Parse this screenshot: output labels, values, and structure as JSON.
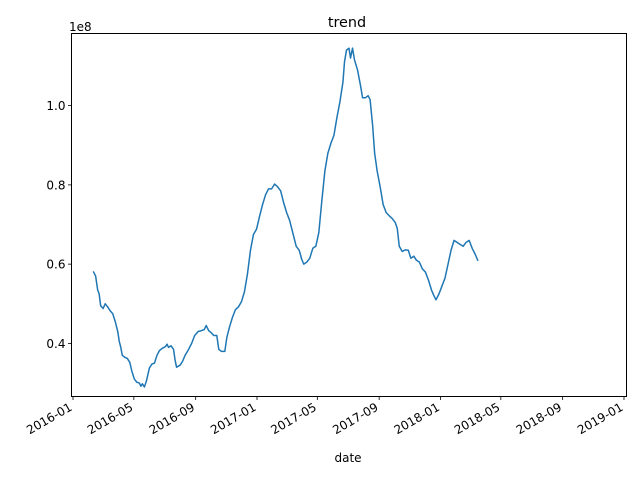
{
  "chart_data": {
    "type": "line",
    "title": "trend",
    "xlabel": "date",
    "ylabel": "",
    "y_scale_label": "1e8",
    "x_ticks": [
      "2016-01",
      "2016-05",
      "2016-09",
      "2017-01",
      "2017-05",
      "2017-09",
      "2018-01",
      "2018-05",
      "2018-09",
      "2019-01"
    ],
    "y_ticks": [
      {
        "value": 40000000,
        "label": "0.4"
      },
      {
        "value": 60000000,
        "label": "0.6"
      },
      {
        "value": 80000000,
        "label": "0.8"
      },
      {
        "value": 100000000,
        "label": "1.0"
      }
    ],
    "xlim": [
      "2015-12-29",
      "2019-01-06"
    ],
    "ylim": [
      26600000,
      118200000
    ],
    "grid": false,
    "series": [
      {
        "color": "#1f77b4",
        "points": [
          [
            "2016-02-11",
            58000000
          ],
          [
            "2016-02-15",
            57000000
          ],
          [
            "2016-02-19",
            53500000
          ],
          [
            "2016-02-22",
            52500000
          ],
          [
            "2016-02-25",
            49500000
          ],
          [
            "2016-03-01",
            48800000
          ],
          [
            "2016-03-05",
            50000000
          ],
          [
            "2016-03-10",
            49200000
          ],
          [
            "2016-03-15",
            48200000
          ],
          [
            "2016-03-20",
            47500000
          ],
          [
            "2016-03-25",
            45500000
          ],
          [
            "2016-03-30",
            43000000
          ],
          [
            "2016-04-02",
            40500000
          ],
          [
            "2016-04-05",
            39000000
          ],
          [
            "2016-04-08",
            37000000
          ],
          [
            "2016-04-13",
            36500000
          ],
          [
            "2016-04-18",
            36200000
          ],
          [
            "2016-04-23",
            35200000
          ],
          [
            "2016-04-27",
            33000000
          ],
          [
            "2016-05-02",
            31000000
          ],
          [
            "2016-05-07",
            30200000
          ],
          [
            "2016-05-12",
            30000000
          ],
          [
            "2016-05-15",
            29200000
          ],
          [
            "2016-05-18",
            29800000
          ],
          [
            "2016-05-22",
            29000000
          ],
          [
            "2016-05-26",
            30500000
          ],
          [
            "2016-06-01",
            33800000
          ],
          [
            "2016-06-06",
            34800000
          ],
          [
            "2016-06-11",
            35000000
          ],
          [
            "2016-06-16",
            37000000
          ],
          [
            "2016-06-21",
            38200000
          ],
          [
            "2016-06-27",
            38800000
          ],
          [
            "2016-07-03",
            39200000
          ],
          [
            "2016-07-06",
            39800000
          ],
          [
            "2016-07-09",
            39000000
          ],
          [
            "2016-07-14",
            39400000
          ],
          [
            "2016-07-19",
            38500000
          ],
          [
            "2016-07-22",
            35800000
          ],
          [
            "2016-07-25",
            34000000
          ],
          [
            "2016-08-01",
            34500000
          ],
          [
            "2016-08-06",
            35500000
          ],
          [
            "2016-08-11",
            37000000
          ],
          [
            "2016-08-18",
            38500000
          ],
          [
            "2016-08-24",
            40000000
          ],
          [
            "2016-08-30",
            42000000
          ],
          [
            "2016-09-06",
            43000000
          ],
          [
            "2016-09-12",
            43200000
          ],
          [
            "2016-09-18",
            43500000
          ],
          [
            "2016-09-22",
            44500000
          ],
          [
            "2016-09-27",
            43200000
          ],
          [
            "2016-10-02",
            42700000
          ],
          [
            "2016-10-07",
            42000000
          ],
          [
            "2016-10-13",
            42000000
          ],
          [
            "2016-10-17",
            38500000
          ],
          [
            "2016-10-22",
            38000000
          ],
          [
            "2016-10-29",
            38000000
          ],
          [
            "2016-11-02",
            41500000
          ],
          [
            "2016-11-07",
            44000000
          ],
          [
            "2016-11-13",
            46500000
          ],
          [
            "2016-11-19",
            48500000
          ],
          [
            "2016-11-25",
            49200000
          ],
          [
            "2016-12-01",
            50500000
          ],
          [
            "2016-12-07",
            53000000
          ],
          [
            "2016-12-13",
            57500000
          ],
          [
            "2016-12-19",
            63500000
          ],
          [
            "2016-12-25",
            67500000
          ],
          [
            "2016-12-31",
            68800000
          ],
          [
            "2017-01-06",
            72000000
          ],
          [
            "2017-01-12",
            75000000
          ],
          [
            "2017-01-18",
            77500000
          ],
          [
            "2017-01-24",
            79000000
          ],
          [
            "2017-01-30",
            79000000
          ],
          [
            "2017-02-05",
            80200000
          ],
          [
            "2017-02-11",
            79500000
          ],
          [
            "2017-02-17",
            78500000
          ],
          [
            "2017-02-23",
            75500000
          ],
          [
            "2017-03-01",
            73000000
          ],
          [
            "2017-03-07",
            71000000
          ],
          [
            "2017-03-14",
            67500000
          ],
          [
            "2017-03-20",
            64500000
          ],
          [
            "2017-03-26",
            63500000
          ],
          [
            "2017-03-31",
            61200000
          ],
          [
            "2017-04-04",
            60000000
          ],
          [
            "2017-04-10",
            60500000
          ],
          [
            "2017-04-16",
            61500000
          ],
          [
            "2017-04-22",
            64000000
          ],
          [
            "2017-04-28",
            64500000
          ],
          [
            "2017-05-04",
            68000000
          ],
          [
            "2017-05-10",
            76000000
          ],
          [
            "2017-05-16",
            83500000
          ],
          [
            "2017-05-22",
            88000000
          ],
          [
            "2017-05-28",
            90500000
          ],
          [
            "2017-06-03",
            92500000
          ],
          [
            "2017-06-09",
            97000000
          ],
          [
            "2017-06-15",
            101000000
          ],
          [
            "2017-06-21",
            106000000
          ],
          [
            "2017-06-24",
            111000000
          ],
          [
            "2017-06-28",
            114000000
          ],
          [
            "2017-07-03",
            114500000
          ],
          [
            "2017-07-06",
            112000000
          ],
          [
            "2017-07-10",
            114500000
          ],
          [
            "2017-07-14",
            111500000
          ],
          [
            "2017-07-20",
            109000000
          ],
          [
            "2017-07-26",
            105000000
          ],
          [
            "2017-07-30",
            102000000
          ],
          [
            "2017-08-05",
            102000000
          ],
          [
            "2017-08-10",
            102500000
          ],
          [
            "2017-08-14",
            101500000
          ],
          [
            "2017-08-19",
            95000000
          ],
          [
            "2017-08-23",
            88000000
          ],
          [
            "2017-08-28",
            83500000
          ],
          [
            "2017-09-03",
            79500000
          ],
          [
            "2017-09-09",
            75000000
          ],
          [
            "2017-09-15",
            73000000
          ],
          [
            "2017-09-21",
            72200000
          ],
          [
            "2017-09-27",
            71500000
          ],
          [
            "2017-10-03",
            70500000
          ],
          [
            "2017-10-07",
            69000000
          ],
          [
            "2017-10-11",
            64500000
          ],
          [
            "2017-10-17",
            63200000
          ],
          [
            "2017-10-23",
            63600000
          ],
          [
            "2017-10-29",
            63500000
          ],
          [
            "2017-11-03",
            61500000
          ],
          [
            "2017-11-09",
            62000000
          ],
          [
            "2017-11-14",
            61000000
          ],
          [
            "2017-11-20",
            60500000
          ],
          [
            "2017-11-26",
            58800000
          ],
          [
            "2017-12-02",
            58000000
          ],
          [
            "2017-12-08",
            56000000
          ],
          [
            "2017-12-14",
            53500000
          ],
          [
            "2017-12-19",
            52000000
          ],
          [
            "2017-12-23",
            51000000
          ],
          [
            "2017-12-29",
            52500000
          ],
          [
            "2018-01-04",
            54500000
          ],
          [
            "2018-01-10",
            56500000
          ],
          [
            "2018-01-16",
            60000000
          ],
          [
            "2018-01-22",
            63500000
          ],
          [
            "2018-01-28",
            66000000
          ],
          [
            "2018-02-03",
            65500000
          ],
          [
            "2018-02-09",
            65000000
          ],
          [
            "2018-02-15",
            64500000
          ],
          [
            "2018-02-21",
            65500000
          ],
          [
            "2018-02-27",
            66000000
          ],
          [
            "2018-03-05",
            64000000
          ],
          [
            "2018-03-11",
            62500000
          ],
          [
            "2018-03-16",
            61000000
          ]
        ]
      }
    ]
  }
}
